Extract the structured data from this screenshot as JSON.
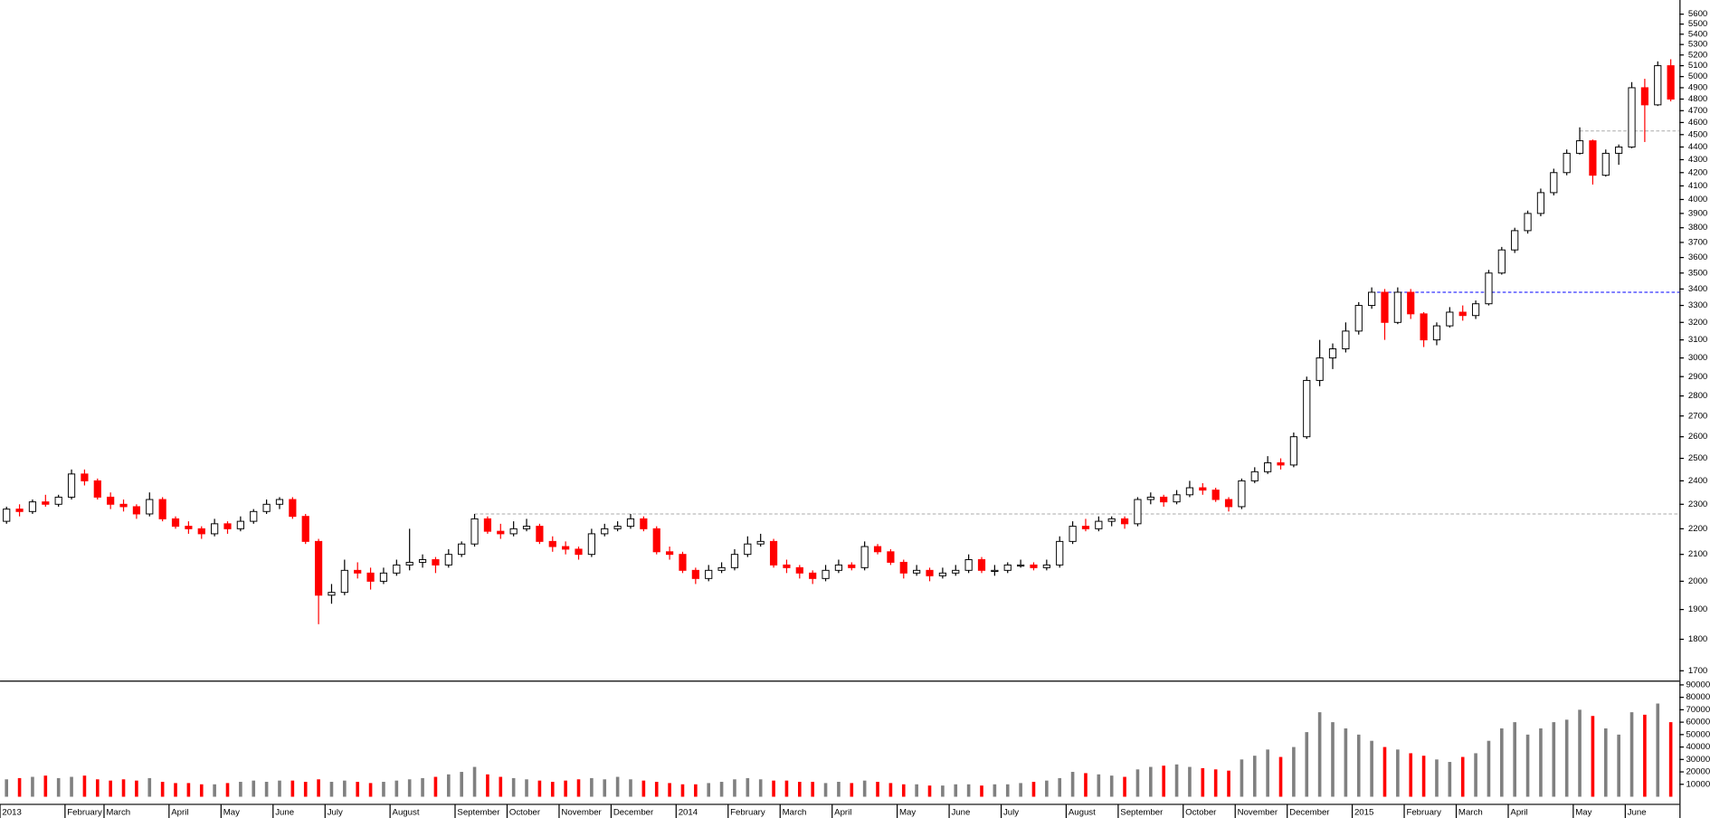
{
  "chart_data": {
    "type": "candlestick",
    "log": true,
    "up_color": "#ffffff",
    "up_edge": "#000000",
    "down_color": "#ff0000",
    "volume_up_color": "#808080",
    "volume_down_color": "#ff0000",
    "ylim": [
      1670,
      5746
    ],
    "yticks": [
      1700,
      1800,
      1900,
      2000,
      2100,
      2200,
      2300,
      2400,
      2500,
      2600,
      2700,
      2800,
      2900,
      3000,
      3100,
      3200,
      3300,
      3400,
      3500,
      3600,
      3700,
      3800,
      3900,
      4000,
      4100,
      4200,
      4300,
      4400,
      4500,
      4600,
      4700,
      4800,
      4900,
      5000,
      5100,
      5200,
      5300,
      5400,
      5500,
      5600
    ],
    "volume_ylim": [
      0,
      92600
    ],
    "volume_yticks": [
      10000,
      20000,
      30000,
      40000,
      50000,
      60000,
      70000,
      80000,
      90000
    ],
    "hlines": [
      {
        "value": 2260,
        "from": 36,
        "color": "#aaaaaa"
      },
      {
        "value": 3380,
        "from": 105,
        "color": "#0000ff"
      },
      {
        "value": 4530,
        "from": 121,
        "color": "#aaaaaa"
      }
    ],
    "categories": [
      "2013",
      null,
      null,
      null,
      null,
      "February",
      null,
      null,
      "March",
      null,
      null,
      null,
      null,
      "April",
      null,
      null,
      null,
      "May",
      null,
      null,
      null,
      "June",
      null,
      null,
      null,
      "July",
      null,
      null,
      null,
      null,
      "August",
      null,
      null,
      null,
      null,
      "September",
      null,
      null,
      null,
      "October",
      null,
      null,
      null,
      "November",
      null,
      null,
      null,
      "December",
      null,
      null,
      null,
      null,
      "2014",
      null,
      null,
      null,
      "February",
      null,
      null,
      null,
      "March",
      null,
      null,
      null,
      "April",
      null,
      null,
      null,
      null,
      "May",
      null,
      null,
      null,
      "June",
      null,
      null,
      null,
      "July",
      null,
      null,
      null,
      null,
      "August",
      null,
      null,
      null,
      "September",
      null,
      null,
      null,
      null,
      "October",
      null,
      null,
      null,
      "November",
      null,
      null,
      null,
      "December",
      null,
      null,
      null,
      null,
      "2015",
      null,
      null,
      null,
      "February",
      null,
      null,
      null,
      "March",
      null,
      null,
      null,
      "April",
      null,
      null,
      null,
      null,
      "May",
      null,
      null,
      null,
      "June",
      null,
      null,
      null
    ],
    "ohlc": [
      [
        2230,
        2290,
        2220,
        2280
      ],
      [
        2280,
        2300,
        2250,
        2270
      ],
      [
        2270,
        2320,
        2260,
        2310
      ],
      [
        2310,
        2340,
        2290,
        2300
      ],
      [
        2300,
        2340,
        2290,
        2330
      ],
      [
        2330,
        2450,
        2320,
        2430
      ],
      [
        2430,
        2450,
        2380,
        2400
      ],
      [
        2400,
        2410,
        2320,
        2330
      ],
      [
        2330,
        2350,
        2280,
        2300
      ],
      [
        2300,
        2320,
        2270,
        2290
      ],
      [
        2290,
        2300,
        2240,
        2260
      ],
      [
        2260,
        2350,
        2250,
        2320
      ],
      [
        2320,
        2330,
        2230,
        2240
      ],
      [
        2240,
        2250,
        2200,
        2210
      ],
      [
        2210,
        2230,
        2180,
        2200
      ],
      [
        2200,
        2210,
        2160,
        2180
      ],
      [
        2180,
        2240,
        2170,
        2220
      ],
      [
        2220,
        2230,
        2180,
        2200
      ],
      [
        2200,
        2250,
        2190,
        2230
      ],
      [
        2230,
        2280,
        2220,
        2270
      ],
      [
        2270,
        2320,
        2260,
        2300
      ],
      [
        2300,
        2330,
        2280,
        2320
      ],
      [
        2320,
        2330,
        2240,
        2250
      ],
      [
        2250,
        2260,
        2140,
        2150
      ],
      [
        2150,
        2160,
        1850,
        1950
      ],
      [
        1950,
        1990,
        1920,
        1960
      ],
      [
        1960,
        2080,
        1950,
        2040
      ],
      [
        2040,
        2070,
        2010,
        2030
      ],
      [
        2030,
        2050,
        1970,
        2000
      ],
      [
        2000,
        2050,
        1990,
        2030
      ],
      [
        2030,
        2080,
        2020,
        2060
      ],
      [
        2060,
        2200,
        2040,
        2070
      ],
      [
        2070,
        2100,
        2050,
        2080
      ],
      [
        2080,
        2090,
        2030,
        2060
      ],
      [
        2060,
        2120,
        2050,
        2100
      ],
      [
        2100,
        2150,
        2090,
        2140
      ],
      [
        2140,
        2260,
        2130,
        2240
      ],
      [
        2240,
        2250,
        2180,
        2190
      ],
      [
        2190,
        2220,
        2160,
        2180
      ],
      [
        2180,
        2230,
        2170,
        2200
      ],
      [
        2200,
        2240,
        2190,
        2210
      ],
      [
        2210,
        2220,
        2140,
        2150
      ],
      [
        2150,
        2170,
        2110,
        2130
      ],
      [
        2130,
        2150,
        2100,
        2120
      ],
      [
        2120,
        2130,
        2080,
        2100
      ],
      [
        2100,
        2200,
        2090,
        2180
      ],
      [
        2180,
        2220,
        2170,
        2200
      ],
      [
        2200,
        2230,
        2190,
        2210
      ],
      [
        2210,
        2260,
        2200,
        2240
      ],
      [
        2240,
        2250,
        2190,
        2200
      ],
      [
        2200,
        2210,
        2100,
        2110
      ],
      [
        2110,
        2130,
        2080,
        2100
      ],
      [
        2100,
        2110,
        2030,
        2040
      ],
      [
        2040,
        2050,
        1990,
        2010
      ],
      [
        2010,
        2060,
        2000,
        2040
      ],
      [
        2040,
        2070,
        2030,
        2050
      ],
      [
        2050,
        2120,
        2040,
        2100
      ],
      [
        2100,
        2170,
        2090,
        2140
      ],
      [
        2140,
        2180,
        2130,
        2150
      ],
      [
        2150,
        2160,
        2050,
        2060
      ],
      [
        2060,
        2080,
        2030,
        2050
      ],
      [
        2050,
        2060,
        2010,
        2030
      ],
      [
        2030,
        2040,
        1990,
        2010
      ],
      [
        2010,
        2060,
        2000,
        2040
      ],
      [
        2040,
        2080,
        2030,
        2060
      ],
      [
        2060,
        2070,
        2040,
        2050
      ],
      [
        2050,
        2150,
        2040,
        2130
      ],
      [
        2130,
        2140,
        2100,
        2110
      ],
      [
        2110,
        2120,
        2060,
        2070
      ],
      [
        2070,
        2080,
        2010,
        2030
      ],
      [
        2030,
        2060,
        2020,
        2040
      ],
      [
        2040,
        2050,
        2000,
        2020
      ],
      [
        2020,
        2050,
        2010,
        2030
      ],
      [
        2030,
        2060,
        2020,
        2040
      ],
      [
        2040,
        2100,
        2030,
        2080
      ],
      [
        2080,
        2090,
        2030,
        2040
      ],
      [
        2040,
        2060,
        2020,
        2040
      ],
      [
        2040,
        2070,
        2030,
        2060
      ],
      [
        2060,
        2080,
        2050,
        2060
      ],
      [
        2060,
        2070,
        2040,
        2050
      ],
      [
        2050,
        2080,
        2040,
        2060
      ],
      [
        2060,
        2170,
        2050,
        2150
      ],
      [
        2150,
        2230,
        2140,
        2210
      ],
      [
        2210,
        2240,
        2190,
        2200
      ],
      [
        2200,
        2250,
        2190,
        2230
      ],
      [
        2230,
        2250,
        2210,
        2240
      ],
      [
        2240,
        2250,
        2200,
        2220
      ],
      [
        2220,
        2330,
        2210,
        2320
      ],
      [
        2320,
        2350,
        2300,
        2330
      ],
      [
        2330,
        2340,
        2290,
        2310
      ],
      [
        2310,
        2360,
        2300,
        2340
      ],
      [
        2340,
        2400,
        2330,
        2370
      ],
      [
        2370,
        2390,
        2340,
        2360
      ],
      [
        2360,
        2370,
        2310,
        2320
      ],
      [
        2320,
        2330,
        2270,
        2290
      ],
      [
        2290,
        2410,
        2280,
        2400
      ],
      [
        2400,
        2460,
        2390,
        2440
      ],
      [
        2440,
        2510,
        2430,
        2480
      ],
      [
        2480,
        2500,
        2450,
        2470
      ],
      [
        2470,
        2620,
        2460,
        2600
      ],
      [
        2600,
        2900,
        2590,
        2880
      ],
      [
        2880,
        3100,
        2850,
        3000
      ],
      [
        3000,
        3080,
        2940,
        3050
      ],
      [
        3050,
        3200,
        3030,
        3150
      ],
      [
        3150,
        3320,
        3130,
        3300
      ],
      [
        3300,
        3410,
        3280,
        3380
      ],
      [
        3380,
        3400,
        3100,
        3200
      ],
      [
        3200,
        3410,
        3190,
        3380
      ],
      [
        3380,
        3400,
        3220,
        3250
      ],
      [
        3250,
        3260,
        3060,
        3100
      ],
      [
        3100,
        3200,
        3070,
        3180
      ],
      [
        3180,
        3290,
        3170,
        3260
      ],
      [
        3260,
        3300,
        3210,
        3240
      ],
      [
        3240,
        3330,
        3220,
        3310
      ],
      [
        3310,
        3520,
        3300,
        3500
      ],
      [
        3500,
        3670,
        3490,
        3650
      ],
      [
        3650,
        3800,
        3630,
        3780
      ],
      [
        3780,
        3920,
        3760,
        3900
      ],
      [
        3900,
        4080,
        3880,
        4050
      ],
      [
        4050,
        4230,
        4030,
        4200
      ],
      [
        4200,
        4380,
        4180,
        4350
      ],
      [
        4350,
        4560,
        4340,
        4450
      ],
      [
        4450,
        4460,
        4110,
        4180
      ],
      [
        4180,
        4380,
        4170,
        4350
      ],
      [
        4350,
        4420,
        4260,
        4400
      ],
      [
        4400,
        4950,
        4390,
        4900
      ],
      [
        4900,
        4980,
        4440,
        4750
      ],
      [
        4750,
        5140,
        4740,
        5100
      ],
      [
        5100,
        5160,
        4780,
        4800
      ]
    ],
    "volume": [
      14000,
      15000,
      16000,
      17000,
      15000,
      16000,
      17000,
      14000,
      13000,
      14000,
      13000,
      15000,
      12000,
      11000,
      11000,
      10000,
      10000,
      11000,
      12000,
      13000,
      12000,
      13000,
      13000,
      12000,
      14000,
      12000,
      13000,
      12000,
      11000,
      12000,
      13000,
      14000,
      15000,
      16000,
      18000,
      20000,
      24000,
      18000,
      16000,
      15000,
      14000,
      13000,
      12000,
      13000,
      14000,
      15000,
      14000,
      16000,
      14000,
      13000,
      12000,
      11000,
      10000,
      10000,
      11000,
      12000,
      14000,
      15000,
      14000,
      13000,
      13000,
      12000,
      12000,
      11000,
      12000,
      11000,
      13000,
      12000,
      11000,
      10000,
      10000,
      9000,
      9000,
      10000,
      10000,
      9000,
      10000,
      10000,
      11000,
      12000,
      13000,
      15000,
      20000,
      19000,
      18000,
      17000,
      16000,
      22000,
      24000,
      25000,
      26000,
      24000,
      23000,
      22000,
      21000,
      30000,
      33000,
      38000,
      32000,
      40000,
      52000,
      68000,
      60000,
      55000,
      50000,
      45000,
      40000,
      38000,
      35000,
      33000,
      30000,
      28000,
      32000,
      35000,
      45000,
      55000,
      60000,
      50000,
      55000,
      60000,
      62000,
      70000,
      65000,
      55000,
      50000,
      68000,
      66000,
      75000,
      60000
    ]
  }
}
